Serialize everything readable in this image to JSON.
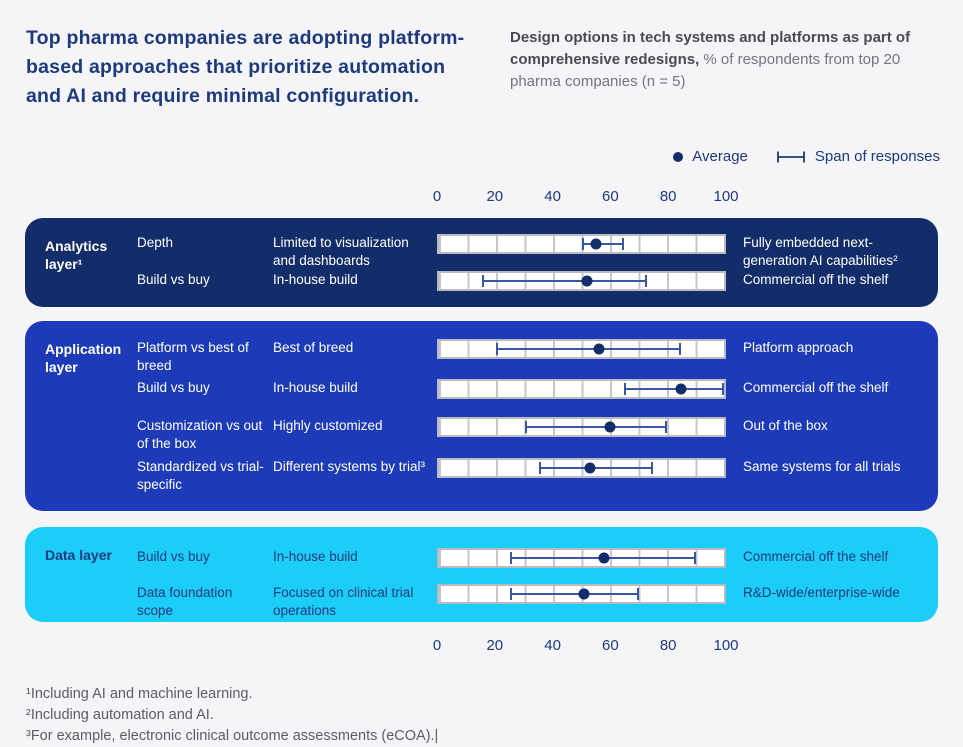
{
  "title": "Top pharma companies are adopting platform-based approaches that prioritize automation and AI and require minimal configuration.",
  "subtitle": {
    "bold": "Design options in tech systems and platforms as part of comprehensive redesigns,",
    "rest": " % of respondents from top 20 pharma companies (n = 5)"
  },
  "legend": {
    "average_label": "Average",
    "span_label": "Span of responses"
  },
  "colors": {
    "page_background": "#f5f5f7",
    "navy_text": "#1d3a7c",
    "analytics_box": "#132c6a",
    "application_box": "#1d3bb8",
    "data_box": "#1bcdf7",
    "bar_fill": "#ffffff",
    "bar_border": "#b9bac2",
    "whisker": "#3a57a4",
    "average_dot": "#132c6a",
    "footnote_text": "#5c5c64"
  },
  "sections": [
    {
      "name": "Analytics layer¹",
      "rows": [
        {
          "dimension": "Depth",
          "left_label": "Limited to visualization and dashboards",
          "right_label": "Fully embedded next-generation AI capabilities²"
        },
        {
          "dimension": "Build vs buy",
          "left_label": "In-house build",
          "right_label": "Commercial off the shelf"
        }
      ]
    },
    {
      "name": "Application layer",
      "rows": [
        {
          "dimension": "Platform vs best of breed",
          "left_label": "Best of breed",
          "right_label": "Platform approach"
        },
        {
          "dimension": "Build vs buy",
          "left_label": "In-house build",
          "right_label": "Commercial off the shelf"
        },
        {
          "dimension": "Customization vs out of the box",
          "left_label": "Highly customized",
          "right_label": "Out of the box"
        },
        {
          "dimension": "Standardized vs trial-specific",
          "left_label": "Different systems by trial³",
          "right_label": "Same systems for all trials"
        }
      ]
    },
    {
      "name": "Data layer",
      "rows": [
        {
          "dimension": "Build vs buy",
          "left_label": "In-house build",
          "right_label": "Commercial off the shelf"
        },
        {
          "dimension": "Data foundation scope",
          "left_label": "Focused on clinical trial operations",
          "right_label": "R&D-wide/enterprise-wide"
        }
      ]
    }
  ],
  "footnotes": [
    "¹Including AI and machine learning.",
    "²Including automation and AI.",
    "³For example, electronic clinical outcome assessments (eCOA).|"
  ],
  "chart_data": {
    "type": "scatter",
    "title": "Design options in tech systems and platforms as part of comprehensive redesigns",
    "xlabel": "% of respondents from top 20 pharma companies (n = 5)",
    "xlim": [
      0,
      100
    ],
    "x_ticks": [
      0,
      20,
      40,
      60,
      80,
      100
    ],
    "legend": [
      "Average",
      "Span of responses"
    ],
    "legend_position": "top-right",
    "grid": "segmented bars, 10 cells of 10 each",
    "rows": [
      {
        "section": "Analytics layer",
        "dimension": "Depth",
        "low_anchor": "Limited to visualization and dashboards",
        "high_anchor": "Fully embedded next-generation AI capabilities",
        "average": 55,
        "span": [
          50,
          65
        ]
      },
      {
        "section": "Analytics layer",
        "dimension": "Build vs buy",
        "low_anchor": "In-house build",
        "high_anchor": "Commercial off the shelf",
        "average": 52,
        "span": [
          15,
          73
        ]
      },
      {
        "section": "Application layer",
        "dimension": "Platform vs best of breed",
        "low_anchor": "Best of breed",
        "high_anchor": "Platform approach",
        "average": 56,
        "span": [
          20,
          85
        ]
      },
      {
        "section": "Application layer",
        "dimension": "Build vs buy",
        "low_anchor": "In-house build",
        "high_anchor": "Commercial off the shelf",
        "average": 85,
        "span": [
          65,
          100
        ]
      },
      {
        "section": "Application layer",
        "dimension": "Customization vs out of the box",
        "low_anchor": "Highly customized",
        "high_anchor": "Out of the box",
        "average": 60,
        "span": [
          30,
          80
        ]
      },
      {
        "section": "Application layer",
        "dimension": "Standardized vs trial-specific",
        "low_anchor": "Different systems by trial",
        "high_anchor": "Same systems for all trials",
        "average": 53,
        "span": [
          35,
          75
        ]
      },
      {
        "section": "Data layer",
        "dimension": "Build vs buy",
        "low_anchor": "In-house build",
        "high_anchor": "Commercial off the shelf",
        "average": 58,
        "span": [
          25,
          90
        ]
      },
      {
        "section": "Data layer",
        "dimension": "Data foundation scope",
        "low_anchor": "Focused on clinical trial operations",
        "high_anchor": "R&D-wide/enterprise-wide",
        "average": 51,
        "span": [
          25,
          70
        ]
      }
    ]
  }
}
